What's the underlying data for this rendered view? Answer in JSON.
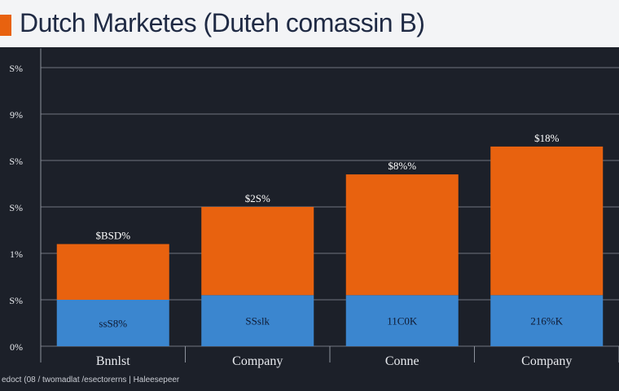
{
  "header": {
    "title": "Dutch Marketes (Duteh comassin B)"
  },
  "footer": {
    "note": "edoct (08 / twomadlat /esectorerns | Haleesepeer"
  },
  "colors": {
    "orange": "#e8620f",
    "blue": "#3b86cf",
    "grid": "#8d929c",
    "text": "#e8eaee"
  },
  "chart_data": {
    "type": "bar",
    "stacked": true,
    "title": "Dutch Marketes (Duteh comassin B)",
    "categories": [
      "Bnnlst",
      "Company",
      "Conne",
      "Company"
    ],
    "y_tick_labels": [
      "0%",
      "S%",
      "1%",
      "S%",
      "S%",
      "9%",
      "S%"
    ],
    "grid": true,
    "series": [
      {
        "color": "#3b86cf",
        "values": [
          1.0,
          1.1,
          1.1,
          1.1
        ],
        "labels": [
          "ssS8%",
          "SSslk",
          "11C0K",
          "216%K"
        ]
      },
      {
        "color": "#e8620f",
        "values": [
          1.2,
          1.9,
          2.6,
          3.2
        ],
        "labels": [
          "$BSD%",
          "$2S%",
          "$8%%",
          "$18%"
        ]
      }
    ],
    "ylim": [
      0,
      6.5
    ]
  }
}
